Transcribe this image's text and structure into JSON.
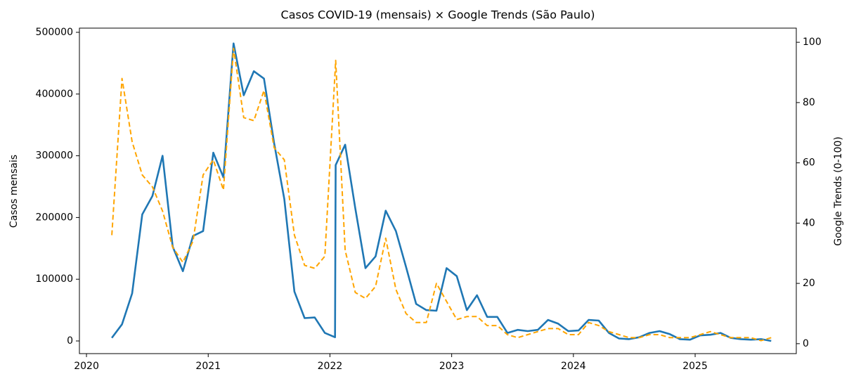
{
  "chart_data": {
    "type": "line",
    "title": "Casos COVID-19 (mensais) × Google Trends (São Paulo)",
    "ylabel": "Casos mensais",
    "y2label": "Google Trends (0-100)",
    "x": [
      2020.208,
      2020.292,
      2020.375,
      2020.458,
      2020.542,
      2020.625,
      2020.708,
      2020.792,
      2020.875,
      2020.958,
      2021.042,
      2021.125,
      2021.208,
      2021.292,
      2021.375,
      2021.458,
      2021.542,
      2021.625,
      2021.708,
      2021.792,
      2021.875,
      2021.958,
      2022.042,
      2022.047,
      2022.125,
      2022.208,
      2022.292,
      2022.375,
      2022.458,
      2022.542,
      2022.625,
      2022.708,
      2022.792,
      2022.875,
      2022.958,
      2023.042,
      2023.125,
      2023.208,
      2023.292,
      2023.375,
      2023.458,
      2023.542,
      2023.625,
      2023.708,
      2023.792,
      2023.875,
      2023.958,
      2024.042,
      2024.125,
      2024.208,
      2024.292,
      2024.375,
      2024.458,
      2024.542,
      2024.625,
      2024.708,
      2024.792,
      2024.875,
      2024.958,
      2025.042,
      2025.125,
      2025.208,
      2025.292,
      2025.375,
      2025.458,
      2025.542,
      2025.625
    ],
    "series": [
      {
        "color": "#1f77b4",
        "values": [
          5000,
          27000,
          77000,
          205000,
          235000,
          300000,
          153000,
          113000,
          170000,
          178000,
          305000,
          265000,
          482000,
          398000,
          437000,
          425000,
          320000,
          230000,
          80000,
          37000,
          38000,
          13000,
          6000,
          285000,
          318000,
          215000,
          118000,
          137000,
          211000,
          178000,
          120000,
          60000,
          50000,
          49000,
          118000,
          105000,
          50000,
          74000,
          39000,
          39000,
          13000,
          18000,
          16000,
          18000,
          34000,
          28000,
          16000,
          17000,
          34000,
          33000,
          13000,
          4000,
          3000,
          6000,
          13000,
          16000,
          11000,
          3000,
          2000,
          9000,
          10000,
          13000,
          5000,
          3000,
          2000,
          3000,
          0
        ]
      },
      {
        "color": "#ffa500",
        "dashed": true,
        "axis": "y2",
        "values": [
          36,
          88,
          67,
          56,
          52,
          44,
          32,
          27,
          34,
          56,
          61,
          51,
          98,
          75,
          74,
          84,
          65,
          61,
          36,
          26,
          25,
          29,
          90,
          94,
          31,
          17,
          15,
          19,
          35,
          18,
          10,
          7,
          7,
          20,
          14,
          8,
          9,
          9,
          6,
          6,
          3,
          2,
          3,
          4,
          5,
          5,
          3,
          3,
          7,
          6,
          4,
          3,
          2,
          2,
          3,
          3,
          2,
          2,
          2,
          3,
          4,
          3,
          2,
          2,
          2,
          1,
          2
        ]
      }
    ],
    "xlim": [
      2019.942,
      2025.831
    ],
    "xticks": [
      2020,
      2021,
      2022,
      2023,
      2024,
      2025
    ],
    "ylim": [
      -20500,
      506800
    ],
    "yticks": [
      0,
      100000,
      200000,
      300000,
      400000,
      500000
    ],
    "y2lim": [
      -3.3,
      104.7
    ],
    "y2ticks": [
      0,
      20,
      40,
      60,
      80,
      100
    ]
  }
}
